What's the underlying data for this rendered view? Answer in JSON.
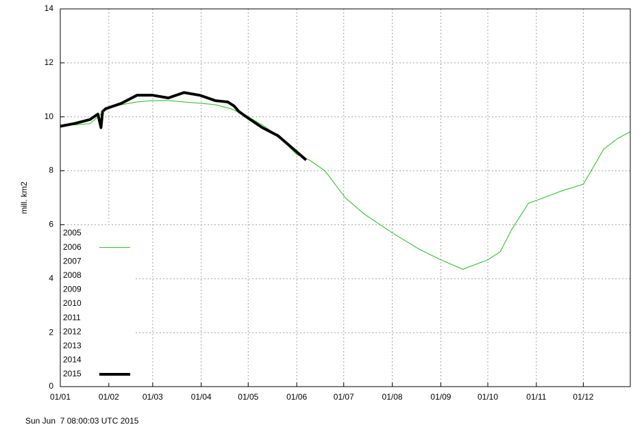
{
  "chart_data": {
    "type": "line",
    "y_label": "mill. km2",
    "timestamp": "Sun Jun  7 08:00:03 UTC 2015",
    "xlim": [
      1,
      365
    ],
    "ylim": [
      0,
      14
    ],
    "yticks": [
      0,
      2,
      4,
      6,
      8,
      10,
      12,
      14
    ],
    "xticks": [
      {
        "value": 1,
        "label": "01/01"
      },
      {
        "value": 32,
        "label": "01/02"
      },
      {
        "value": 60,
        "label": "01/03"
      },
      {
        "value": 91,
        "label": "01/04"
      },
      {
        "value": 121,
        "label": "01/05"
      },
      {
        "value": 152,
        "label": "01/06"
      },
      {
        "value": 182,
        "label": "01/07"
      },
      {
        "value": 213,
        "label": "01/08"
      },
      {
        "value": 244,
        "label": "01/09"
      },
      {
        "value": 274,
        "label": "01/10"
      },
      {
        "value": 305,
        "label": "01/11"
      },
      {
        "value": 335,
        "label": "01/12"
      }
    ],
    "grid": true,
    "series": [
      {
        "name": "2005",
        "color": "#ffffff",
        "width": 1,
        "x": [],
        "values": []
      },
      {
        "name": "2006",
        "color": "#22bb22",
        "width": 1,
        "x": [
          1,
          10,
          20,
          31,
          40,
          50,
          60,
          70,
          80,
          91,
          100,
          110,
          121,
          130,
          140,
          152,
          160,
          170,
          183,
          195,
          213,
          230,
          244,
          258,
          274,
          282,
          289,
          300,
          305,
          321,
          335,
          343,
          348,
          357,
          365
        ],
        "values": [
          9.7,
          9.7,
          9.75,
          10.3,
          10.45,
          10.55,
          10.6,
          10.6,
          10.55,
          10.5,
          10.45,
          10.3,
          10.0,
          9.7,
          9.3,
          8.6,
          8.4,
          8.0,
          7.0,
          6.4,
          5.7,
          5.1,
          4.7,
          4.35,
          4.7,
          5.0,
          5.8,
          6.8,
          6.9,
          7.25,
          7.5,
          8.3,
          8.8,
          9.2,
          9.45
        ]
      },
      {
        "name": "2007",
        "color": "#ffffff",
        "width": 1,
        "x": [],
        "values": []
      },
      {
        "name": "2008",
        "color": "#ffffff",
        "width": 1,
        "x": [],
        "values": []
      },
      {
        "name": "2009",
        "color": "#ffffff",
        "width": 1,
        "x": [],
        "values": []
      },
      {
        "name": "2010",
        "color": "#ffffff",
        "width": 1,
        "x": [],
        "values": []
      },
      {
        "name": "2011",
        "color": "#ffffff",
        "width": 1,
        "x": [],
        "values": []
      },
      {
        "name": "2012",
        "color": "#ffffff",
        "width": 1,
        "x": [],
        "values": []
      },
      {
        "name": "2013",
        "color": "#ffffff",
        "width": 1,
        "x": [],
        "values": []
      },
      {
        "name": "2014",
        "color": "#ffffff",
        "width": 1,
        "x": [],
        "values": []
      },
      {
        "name": "2015",
        "color": "#000000",
        "width": 4,
        "x": [
          1,
          10,
          20,
          25,
          27,
          28,
          30,
          40,
          50,
          60,
          70,
          80,
          90,
          100,
          108,
          112,
          115,
          121,
          130,
          140,
          150,
          158
        ],
        "values": [
          9.65,
          9.75,
          9.9,
          10.1,
          9.6,
          10.2,
          10.3,
          10.5,
          10.8,
          10.8,
          10.7,
          10.9,
          10.8,
          10.6,
          10.55,
          10.4,
          10.2,
          9.95,
          9.6,
          9.3,
          8.8,
          8.4
        ]
      }
    ]
  }
}
